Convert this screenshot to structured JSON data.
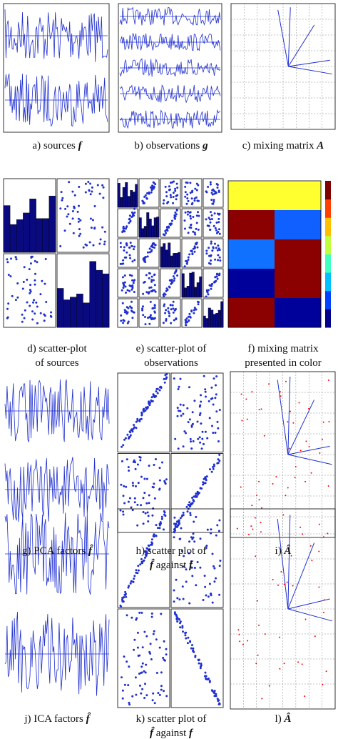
{
  "captions": [
    [
      [
        {
          "t": "a) sources "
        },
        {
          "m": "f"
        }
      ]
    ],
    [
      [
        {
          "t": "b) observations "
        },
        {
          "m": "g"
        }
      ]
    ],
    [
      [
        {
          "t": "c) mixing matrix "
        },
        {
          "m": "A"
        }
      ]
    ],
    [
      [
        {
          "t": "d) scatter-plot"
        }
      ],
      [
        {
          "t": "of sources"
        }
      ]
    ],
    [
      [
        {
          "t": "e) scatter-plot of"
        }
      ],
      [
        {
          "t": "observations"
        }
      ]
    ],
    [
      [
        {
          "t": "f) mixing matrix"
        }
      ],
      [
        {
          "t": "presented in color"
        }
      ]
    ],
    [
      [
        {
          "t": "g) PCA factors "
        },
        {
          "m": "f̂"
        }
      ]
    ],
    [
      [
        {
          "t": "h) scatter plot of"
        }
      ],
      [
        {
          "m": "f̂"
        },
        {
          "t": " against "
        },
        {
          "m": "f"
        }
      ]
    ],
    [
      [
        {
          "t": "i) "
        },
        {
          "m": "Â"
        }
      ]
    ],
    [
      [
        {
          "t": "j) ICA factors "
        },
        {
          "m": "f̂"
        }
      ]
    ],
    [
      [
        {
          "t": "k) scatter plot of"
        }
      ],
      [
        {
          "m": "f̂"
        },
        {
          "t": " against "
        },
        {
          "m": "f"
        }
      ]
    ],
    [
      [
        {
          "t": "l) "
        },
        {
          "m": "Â"
        }
      ]
    ]
  ]
}
